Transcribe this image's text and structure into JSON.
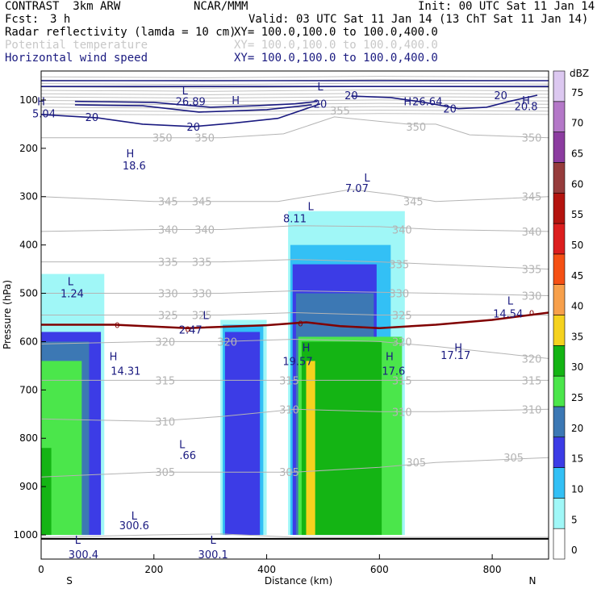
{
  "header": {
    "model": "CONTRAST  3km ARW",
    "center": "NCAR/MMM",
    "init": "Init: 00 UTC Sat 11 Jan 14",
    "fcst_label": "Fcst:",
    "fcst_value": "3 h",
    "valid": "Valid: 03 UTC Sat 11 Jan 14 (13 ChT Sat 11 Jan 14)",
    "fields": [
      {
        "name": "Radar reflectivity (lamda = 10 cm)",
        "xy": "XY= 100.0,100.0 to 100.0,400.0"
      },
      {
        "name": "Potential temperature",
        "xy": "XY= 100.0,100.0 to 100.0,400.0"
      },
      {
        "name": "Horizontal wind speed",
        "xy": "XY= 100.0,100.0 to 100.0,400.0"
      }
    ]
  },
  "chart_data": {
    "type": "cross-section",
    "xlabel": "Distance (km)",
    "ylabel": "Pressure (hPa)",
    "xlim": [
      0,
      900
    ],
    "ylim": [
      1050,
      40
    ],
    "x_ticks": [
      0,
      200,
      400,
      600,
      800
    ],
    "y_ticks": [
      100,
      200,
      300,
      400,
      500,
      600,
      700,
      800,
      900,
      1000
    ],
    "x_end_labels": {
      "left": "S",
      "right": "N"
    },
    "colorbar": {
      "unit": "dBZ",
      "levels": [
        0,
        5,
        10,
        15,
        20,
        25,
        30,
        35,
        40,
        45,
        50,
        55,
        60,
        65,
        70,
        75
      ],
      "colors": [
        "#ffffff",
        "#a0f7f7",
        "#33c0f5",
        "#3c3ce6",
        "#3c78b4",
        "#4be64b",
        "#14b414",
        "#f5d21e",
        "#f7a04b",
        "#f55014",
        "#dc1e1e",
        "#b4140f",
        "#963c3c",
        "#8c3ca0",
        "#b478c8",
        "#dcc8f0"
      ]
    },
    "reflectivity_regions": [
      {
        "level": 5,
        "x1": 0,
        "x2": 112,
        "p_top": 460,
        "p_bot": 1000
      },
      {
        "level": 15,
        "x1": 0,
        "x2": 106,
        "p_top": 580,
        "p_bot": 1000
      },
      {
        "level": 20,
        "x1": 0,
        "x2": 85,
        "p_top": 600,
        "p_bot": 1000
      },
      {
        "level": 25,
        "x1": 0,
        "x2": 72,
        "p_top": 640,
        "p_bot": 1000
      },
      {
        "level": 30,
        "x1": 0,
        "x2": 18,
        "p_top": 820,
        "p_bot": 1000
      },
      {
        "level": 5,
        "x1": 318,
        "x2": 400,
        "p_top": 555,
        "p_bot": 1000
      },
      {
        "level": 10,
        "x1": 322,
        "x2": 394,
        "p_top": 565,
        "p_bot": 1000
      },
      {
        "level": 15,
        "x1": 326,
        "x2": 388,
        "p_top": 580,
        "p_bot": 1000
      },
      {
        "level": 5,
        "x1": 438,
        "x2": 645,
        "p_top": 330,
        "p_bot": 1000
      },
      {
        "level": 10,
        "x1": 442,
        "x2": 620,
        "p_top": 400,
        "p_bot": 1000
      },
      {
        "level": 15,
        "x1": 446,
        "x2": 595,
        "p_top": 440,
        "p_bot": 1000
      },
      {
        "level": 20,
        "x1": 452,
        "x2": 590,
        "p_top": 500,
        "p_bot": 1000
      },
      {
        "level": 25,
        "x1": 456,
        "x2": 640,
        "p_top": 590,
        "p_bot": 1000
      },
      {
        "level": 30,
        "x1": 462,
        "x2": 604,
        "p_top": 600,
        "p_bot": 1000
      },
      {
        "level": 35,
        "x1": 470,
        "x2": 486,
        "p_top": 640,
        "p_bot": 1000
      }
    ],
    "wind_labels": [
      {
        "x": 5,
        "p": 128,
        "text": "5.04"
      },
      {
        "x": 265,
        "p": 103,
        "text": "26.89"
      },
      {
        "x": 685,
        "p": 103,
        "text": "26.64"
      },
      {
        "x": 860,
        "p": 113,
        "text": "20.8"
      },
      {
        "x": 90,
        "p": 135,
        "text": "20"
      },
      {
        "x": 270,
        "p": 155,
        "text": "20"
      },
      {
        "x": 495,
        "p": 108,
        "text": "20"
      },
      {
        "x": 550,
        "p": 90,
        "text": "20"
      },
      {
        "x": 725,
        "p": 118,
        "text": "20"
      },
      {
        "x": 815,
        "p": 90,
        "text": "20"
      },
      {
        "x": 165,
        "p": 235,
        "text": "18.6"
      },
      {
        "x": 560,
        "p": 282,
        "text": "7.07"
      },
      {
        "x": 450,
        "p": 345,
        "text": "8.11"
      },
      {
        "x": 55,
        "p": 500,
        "text": "1.24"
      },
      {
        "x": 265,
        "p": 575,
        "text": "2.47"
      },
      {
        "x": 150,
        "p": 660,
        "text": "14.31"
      },
      {
        "x": 455,
        "p": 640,
        "text": "19.57"
      },
      {
        "x": 625,
        "p": 660,
        "text": "17.6"
      },
      {
        "x": 735,
        "p": 628,
        "text": "17.17"
      },
      {
        "x": 828,
        "p": 542,
        "text": "14.54"
      },
      {
        "x": 260,
        "p": 835,
        "text": ".66"
      },
      {
        "x": 165,
        "p": 980,
        "text": "300.6"
      },
      {
        "x": 305,
        "p": 1040,
        "text": "300.1"
      },
      {
        "x": 75,
        "p": 1040,
        "text": "300.4"
      }
    ],
    "extremum_letters": [
      {
        "x": 255,
        "p": 80,
        "text": "L"
      },
      {
        "x": 495,
        "p": 72,
        "text": "L"
      },
      {
        "x": 0,
        "p": 103,
        "text": "H"
      },
      {
        "x": 345,
        "p": 100,
        "text": "H"
      },
      {
        "x": 650,
        "p": 103,
        "text": "H"
      },
      {
        "x": 860,
        "p": 100,
        "text": "H"
      },
      {
        "x": 158,
        "p": 210,
        "text": "H"
      },
      {
        "x": 578,
        "p": 260,
        "text": "L"
      },
      {
        "x": 478,
        "p": 320,
        "text": "L"
      },
      {
        "x": 52,
        "p": 475,
        "text": "L"
      },
      {
        "x": 292,
        "p": 545,
        "text": "L"
      },
      {
        "x": 128,
        "p": 630,
        "text": "H"
      },
      {
        "x": 470,
        "p": 612,
        "text": "H"
      },
      {
        "x": 618,
        "p": 630,
        "text": "H"
      },
      {
        "x": 740,
        "p": 612,
        "text": "H"
      },
      {
        "x": 832,
        "p": 515,
        "text": "L"
      },
      {
        "x": 250,
        "p": 812,
        "text": "L"
      },
      {
        "x": 165,
        "p": 960,
        "text": "L"
      },
      {
        "x": 305,
        "p": 1010,
        "text": "L"
      },
      {
        "x": 65,
        "p": 1010,
        "text": "L"
      }
    ],
    "theta_labels": [
      {
        "x": 215,
        "p": 178,
        "text": "350"
      },
      {
        "x": 290,
        "p": 178,
        "text": "350"
      },
      {
        "x": 530,
        "p": 122,
        "text": "355"
      },
      {
        "x": 665,
        "p": 155,
        "text": "350"
      },
      {
        "x": 870,
        "p": 178,
        "text": "350"
      },
      {
        "x": 225,
        "p": 310,
        "text": "345"
      },
      {
        "x": 285,
        "p": 310,
        "text": "345"
      },
      {
        "x": 660,
        "p": 310,
        "text": "345"
      },
      {
        "x": 870,
        "p": 300,
        "text": "345"
      },
      {
        "x": 225,
        "p": 368,
        "text": "340"
      },
      {
        "x": 290,
        "p": 368,
        "text": "340"
      },
      {
        "x": 640,
        "p": 368,
        "text": "340"
      },
      {
        "x": 870,
        "p": 372,
        "text": "340"
      },
      {
        "x": 225,
        "p": 435,
        "text": "335"
      },
      {
        "x": 285,
        "p": 435,
        "text": "335"
      },
      {
        "x": 635,
        "p": 440,
        "text": "335"
      },
      {
        "x": 870,
        "p": 450,
        "text": "335"
      },
      {
        "x": 225,
        "p": 500,
        "text": "330"
      },
      {
        "x": 285,
        "p": 500,
        "text": "330"
      },
      {
        "x": 635,
        "p": 500,
        "text": "330"
      },
      {
        "x": 870,
        "p": 505,
        "text": "330"
      },
      {
        "x": 225,
        "p": 545,
        "text": "325"
      },
      {
        "x": 285,
        "p": 545,
        "text": "325"
      },
      {
        "x": 640,
        "p": 545,
        "text": "325"
      },
      {
        "x": 870,
        "p": 635,
        "text": "320"
      },
      {
        "x": 220,
        "p": 600,
        "text": "320"
      },
      {
        "x": 330,
        "p": 600,
        "text": "320"
      },
      {
        "x": 640,
        "p": 600,
        "text": "320"
      },
      {
        "x": 220,
        "p": 680,
        "text": "315"
      },
      {
        "x": 440,
        "p": 680,
        "text": "315"
      },
      {
        "x": 640,
        "p": 680,
        "text": "315"
      },
      {
        "x": 870,
        "p": 680,
        "text": "315"
      },
      {
        "x": 220,
        "p": 765,
        "text": "310"
      },
      {
        "x": 440,
        "p": 740,
        "text": "310"
      },
      {
        "x": 640,
        "p": 745,
        "text": "310"
      },
      {
        "x": 870,
        "p": 740,
        "text": "310"
      },
      {
        "x": 220,
        "p": 870,
        "text": "305"
      },
      {
        "x": 440,
        "p": 870,
        "text": "305"
      },
      {
        "x": 665,
        "p": 850,
        "text": "305"
      },
      {
        "x": 838,
        "p": 840,
        "text": "305"
      }
    ],
    "zero_labels": [
      {
        "x": 135,
        "p": 565,
        "text": "0"
      },
      {
        "x": 260,
        "p": 573,
        "text": "0"
      },
      {
        "x": 460,
        "p": 562,
        "text": "0"
      },
      {
        "x": 870,
        "p": 540,
        "text": "0"
      }
    ],
    "theta_lines": [
      {
        "value": 350,
        "pts": [
          [
            0,
            178
          ],
          [
            200,
            178
          ],
          [
            320,
            178
          ],
          [
            430,
            170
          ],
          [
            520,
            135
          ],
          [
            650,
            150
          ],
          [
            700,
            150
          ],
          [
            760,
            172
          ],
          [
            900,
            178
          ]
        ]
      },
      {
        "value": 345,
        "pts": [
          [
            0,
            300
          ],
          [
            200,
            310
          ],
          [
            320,
            310
          ],
          [
            420,
            310
          ],
          [
            550,
            285
          ],
          [
            620,
            295
          ],
          [
            700,
            310
          ],
          [
            900,
            300
          ]
        ]
      },
      {
        "value": 340,
        "pts": [
          [
            0,
            372
          ],
          [
            200,
            368
          ],
          [
            320,
            368
          ],
          [
            450,
            360
          ],
          [
            600,
            362
          ],
          [
            700,
            368
          ],
          [
            900,
            372
          ]
        ]
      },
      {
        "value": 335,
        "pts": [
          [
            0,
            435
          ],
          [
            200,
            435
          ],
          [
            320,
            435
          ],
          [
            450,
            430
          ],
          [
            600,
            435
          ],
          [
            700,
            440
          ],
          [
            900,
            450
          ]
        ]
      },
      {
        "value": 330,
        "pts": [
          [
            0,
            500
          ],
          [
            200,
            500
          ],
          [
            320,
            500
          ],
          [
            450,
            495
          ],
          [
            600,
            498
          ],
          [
            700,
            500
          ],
          [
            900,
            505
          ]
        ]
      },
      {
        "value": 325,
        "pts": [
          [
            0,
            545
          ],
          [
            200,
            545
          ],
          [
            320,
            545
          ],
          [
            450,
            540
          ],
          [
            600,
            545
          ],
          [
            700,
            545
          ],
          [
            900,
            545
          ]
        ]
      },
      {
        "value": 320,
        "pts": [
          [
            0,
            605
          ],
          [
            200,
            600
          ],
          [
            320,
            600
          ],
          [
            450,
            595
          ],
          [
            600,
            600
          ],
          [
            700,
            610
          ],
          [
            900,
            635
          ]
        ]
      },
      {
        "value": 315,
        "pts": [
          [
            0,
            680
          ],
          [
            200,
            680
          ],
          [
            320,
            680
          ],
          [
            450,
            680
          ],
          [
            600,
            680
          ],
          [
            700,
            680
          ],
          [
            900,
            680
          ]
        ]
      },
      {
        "value": 310,
        "pts": [
          [
            0,
            760
          ],
          [
            200,
            765
          ],
          [
            320,
            755
          ],
          [
            450,
            740
          ],
          [
            600,
            745
          ],
          [
            700,
            745
          ],
          [
            900,
            740
          ]
        ]
      },
      {
        "value": 305,
        "pts": [
          [
            0,
            880
          ],
          [
            200,
            870
          ],
          [
            320,
            870
          ],
          [
            450,
            870
          ],
          [
            600,
            860
          ],
          [
            700,
            850
          ],
          [
            900,
            840
          ]
        ]
      },
      {
        "value": 300,
        "pts": [
          [
            0,
            1005
          ],
          [
            200,
            1000
          ],
          [
            320,
            998
          ],
          [
            450,
            1005
          ],
          [
            600,
            1005
          ],
          [
            700,
            1005
          ],
          [
            900,
            1005
          ]
        ]
      }
    ],
    "wind20_lines": [
      [
        [
          0,
          130
        ],
        [
          100,
          137
        ],
        [
          180,
          150
        ],
        [
          270,
          155
        ],
        [
          340,
          148
        ],
        [
          420,
          138
        ],
        [
          495,
          108
        ]
      ],
      [
        [
          60,
          103
        ],
        [
          200,
          105
        ],
        [
          300,
          115
        ],
        [
          380,
          112
        ],
        [
          450,
          108
        ],
        [
          490,
          103
        ]
      ],
      [
        [
          550,
          92
        ],
        [
          620,
          95
        ],
        [
          680,
          105
        ],
        [
          740,
          118
        ],
        [
          790,
          115
        ],
        [
          830,
          103
        ],
        [
          880,
          90
        ]
      ],
      [
        [
          60,
          110
        ],
        [
          180,
          112
        ],
        [
          280,
          125
        ],
        [
          400,
          120
        ],
        [
          480,
          110
        ]
      ],
      [
        [
          0,
          60
        ],
        [
          900,
          60
        ]
      ],
      [
        [
          0,
          72
        ],
        [
          900,
          72
        ]
      ]
    ],
    "zero_isotherm": [
      [
        0,
        565
      ],
      [
        130,
        565
      ],
      [
        260,
        572
      ],
      [
        400,
        566
      ],
      [
        470,
        560
      ],
      [
        530,
        568
      ],
      [
        600,
        572
      ],
      [
        700,
        565
      ],
      [
        800,
        555
      ],
      [
        900,
        540
      ]
    ]
  }
}
